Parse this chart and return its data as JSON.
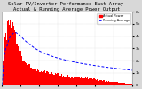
{
  "title": "Solar PV/Inverter Performance East Array  Actual & Running Average Power Output",
  "bg_color": "#d8d8d8",
  "plot_bg": "#ffffff",
  "grid_color": "#aaaaaa",
  "bar_color": "#ff0000",
  "line_color": "#0000ff",
  "n_bars": 288,
  "ylim": [
    0,
    6000
  ],
  "ytick_vals": [
    0,
    1000,
    2000,
    3000,
    4000,
    5000,
    6000
  ],
  "ytick_labels": [
    "0",
    "1k",
    "2k",
    "3k",
    "4k",
    "5k",
    "6k"
  ],
  "title_fontsize": 4.0,
  "tick_fontsize": 3.2,
  "legend_labels": [
    "Actual Power",
    "Running Average"
  ],
  "legend_colors": [
    "#ff0000",
    "#0000ff"
  ]
}
